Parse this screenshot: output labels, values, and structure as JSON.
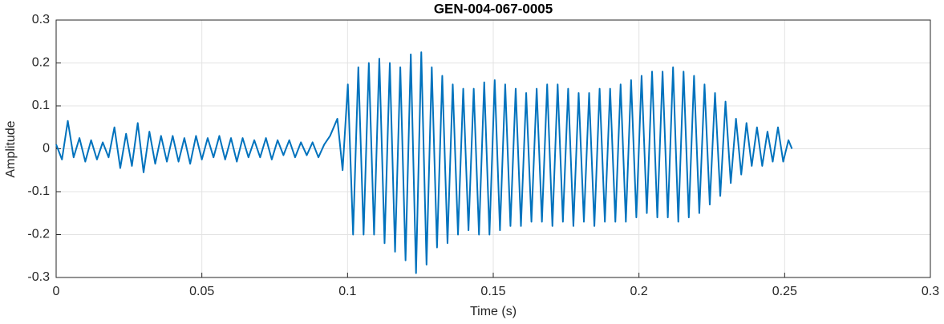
{
  "chart_data": {
    "type": "line",
    "title": "GEN-004-067-0005",
    "x_label": "Time (s)",
    "y_label": "Amplitude",
    "xlim": [
      0,
      0.3
    ],
    "xticks": [
      0,
      0.05,
      0.1,
      0.15,
      0.2,
      0.25,
      0.3
    ],
    "ylim": [
      -0.3,
      0.3
    ],
    "yticks": [
      -0.3,
      -0.2,
      -0.1,
      0,
      0.1,
      0.2,
      0.3
    ],
    "grid": true,
    "x": [
      0,
      0.002,
      0.004,
      0.006,
      0.008,
      0.01,
      0.012,
      0.014,
      0.016,
      0.018,
      0.02,
      0.022,
      0.024,
      0.026,
      0.028,
      0.03,
      0.032,
      0.034,
      0.036,
      0.038,
      0.04,
      0.042,
      0.044,
      0.046,
      0.048,
      0.05,
      0.052,
      0.054,
      0.056,
      0.058,
      0.06,
      0.062,
      0.064,
      0.066,
      0.068,
      0.07,
      0.072,
      0.074,
      0.076,
      0.078,
      0.08,
      0.082,
      0.084,
      0.086,
      0.088,
      0.09,
      0.092,
      0.094,
      0.0965,
      0.0983,
      0.1001,
      0.1019,
      0.1037,
      0.1055,
      0.1073,
      0.1091,
      0.1109,
      0.1127,
      0.1145,
      0.1163,
      0.1181,
      0.1199,
      0.1217,
      0.1235,
      0.1253,
      0.1271,
      0.1289,
      0.1307,
      0.1325,
      0.1343,
      0.1361,
      0.1379,
      0.1397,
      0.1415,
      0.1433,
      0.1451,
      0.1469,
      0.1487,
      0.1505,
      0.1523,
      0.1541,
      0.1559,
      0.1577,
      0.1595,
      0.1613,
      0.1631,
      0.1649,
      0.1667,
      0.1685,
      0.1703,
      0.1721,
      0.1739,
      0.1757,
      0.1775,
      0.1793,
      0.1811,
      0.1829,
      0.1847,
      0.1865,
      0.1883,
      0.1901,
      0.1919,
      0.1937,
      0.1955,
      0.1973,
      0.1991,
      0.2009,
      0.2027,
      0.2045,
      0.2063,
      0.2081,
      0.2099,
      0.2117,
      0.2135,
      0.2153,
      0.2171,
      0.2189,
      0.2207,
      0.2225,
      0.2243,
      0.2261,
      0.2279,
      0.2297,
      0.2315,
      0.2333,
      0.2351,
      0.2369,
      0.2387,
      0.2405,
      0.2423,
      0.2441,
      0.2459,
      0.2477,
      0.2495,
      0.2513,
      0.2525
    ],
    "series": [
      {
        "name": "Amplitude",
        "color": "#0072bd",
        "values": [
          0.01,
          -0.025,
          0.065,
          -0.02,
          0.025,
          -0.03,
          0.02,
          -0.025,
          0.015,
          -0.02,
          0.05,
          -0.045,
          0.035,
          -0.04,
          0.06,
          -0.055,
          0.04,
          -0.035,
          0.03,
          -0.03,
          0.03,
          -0.03,
          0.025,
          -0.035,
          0.03,
          -0.025,
          0.025,
          -0.02,
          0.03,
          -0.025,
          0.025,
          -0.03,
          0.025,
          -0.02,
          0.02,
          -0.02,
          0.025,
          -0.025,
          0.02,
          -0.015,
          0.02,
          -0.02,
          0.015,
          -0.015,
          0.015,
          -0.02,
          0.01,
          0.03,
          0.07,
          -0.05,
          0.15,
          -0.2,
          0.19,
          -0.2,
          0.2,
          -0.2,
          0.21,
          -0.22,
          0.2,
          -0.24,
          0.19,
          -0.26,
          0.22,
          -0.29,
          0.225,
          -0.27,
          0.19,
          -0.23,
          0.17,
          -0.22,
          0.15,
          -0.2,
          0.14,
          -0.19,
          0.14,
          -0.2,
          0.155,
          -0.2,
          0.16,
          -0.19,
          0.15,
          -0.18,
          0.14,
          -0.18,
          0.13,
          -0.17,
          0.14,
          -0.17,
          0.15,
          -0.18,
          0.15,
          -0.17,
          0.14,
          -0.18,
          0.13,
          -0.17,
          0.13,
          -0.18,
          0.14,
          -0.17,
          0.14,
          -0.17,
          0.15,
          -0.17,
          0.16,
          -0.16,
          0.17,
          -0.15,
          0.18,
          -0.16,
          0.18,
          -0.16,
          0.19,
          -0.17,
          0.18,
          -0.16,
          0.17,
          -0.15,
          0.15,
          -0.13,
          0.13,
          -0.11,
          0.11,
          -0.08,
          0.07,
          -0.06,
          0.06,
          -0.04,
          0.05,
          -0.04,
          0.04,
          -0.03,
          0.05,
          -0.03,
          0.02,
          0
        ]
      }
    ]
  }
}
